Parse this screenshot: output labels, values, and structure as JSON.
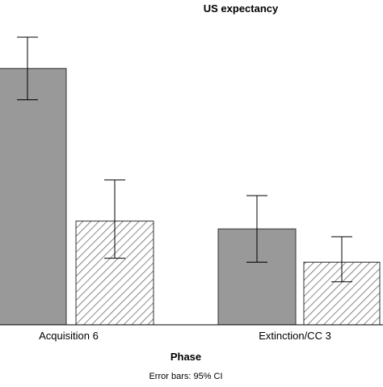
{
  "chart_data": {
    "type": "bar",
    "title": "US expectancy",
    "xlabel": "Phase",
    "footnote": "Error bars: 95% CI",
    "categories": [
      "Acquisition 6",
      "Extinction/CC 3"
    ],
    "series": [
      {
        "values": [
          6.55,
          2.45
        ],
        "ci_low": [
          5.75,
          1.6
        ],
        "ci_high": [
          7.35,
          3.3
        ],
        "fill": "#999999",
        "pattern": "solid"
      },
      {
        "values": [
          2.65,
          1.6
        ],
        "ci_low": [
          1.7,
          1.1
        ],
        "ci_high": [
          3.7,
          2.25
        ],
        "fill": "#ffffff",
        "pattern": "diagonal-hatch"
      }
    ],
    "ylim": [
      0,
      8.3
    ],
    "grid": false,
    "colors": {
      "bar_stroke": "#333333",
      "hatch": "#555555",
      "axis": "#000000"
    }
  }
}
